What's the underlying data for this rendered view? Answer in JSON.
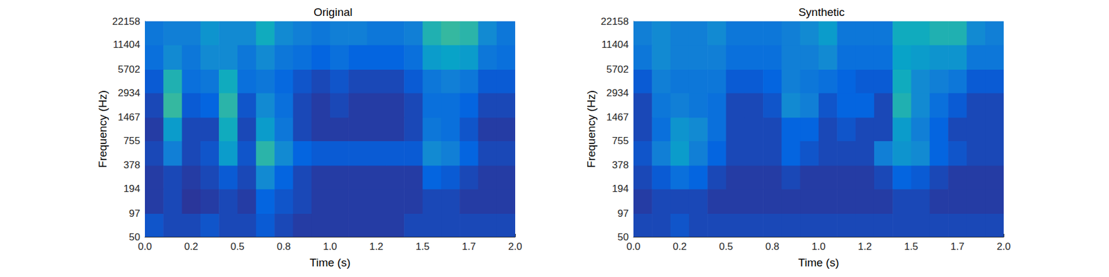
{
  "chart_data": [
    {
      "type": "heatmap",
      "title": "Original",
      "x_label": "Time (s)",
      "y_label": "Frequency (Hz)",
      "log": "y",
      "grid": false,
      "xlim": [
        0,
        2
      ],
      "ylim": [
        50,
        22158
      ],
      "zlim": [
        0.25,
        1.0
      ],
      "xticks": [
        {
          "value": 0,
          "label": "0.0"
        },
        {
          "value": 0.25,
          "label": "0.2"
        },
        {
          "value": 0.5,
          "label": "0.5"
        },
        {
          "value": 0.75,
          "label": "0.8"
        },
        {
          "value": 1,
          "label": "1.0"
        },
        {
          "value": 1.25,
          "label": "1.2"
        },
        {
          "value": 1.5,
          "label": "1.5"
        },
        {
          "value": 1.75,
          "label": "1.7"
        },
        {
          "value": 2,
          "label": "2.0"
        }
      ],
      "yticks": [
        50,
        97,
        194,
        378,
        755,
        1467,
        2934,
        5702,
        11404,
        22158
      ],
      "x_edges": [
        0,
        0.1,
        0.2,
        0.3,
        0.4,
        0.5,
        0.6,
        0.7,
        0.8,
        0.9,
        1.0,
        1.1,
        1.2,
        1.3,
        1.4,
        1.5,
        1.6,
        1.7,
        1.8,
        1.9,
        2.0
      ],
      "y_edges": [
        50,
        97,
        194,
        378,
        755,
        1467,
        2934,
        5702,
        11404,
        22158
      ],
      "values": [
        [
          0.32,
          0.3,
          0.3,
          0.32,
          0.3,
          0.3,
          0.33,
          0.3,
          0.28,
          0.28,
          0.28,
          0.28,
          0.28,
          0.28,
          0.3,
          0.3,
          0.3,
          0.3,
          0.3,
          0.3
        ],
        [
          0.28,
          0.3,
          0.27,
          0.28,
          0.3,
          0.28,
          0.35,
          0.32,
          0.3,
          0.28,
          0.28,
          0.28,
          0.28,
          0.28,
          0.28,
          0.3,
          0.3,
          0.28,
          0.28,
          0.28
        ],
        [
          0.28,
          0.3,
          0.28,
          0.3,
          0.33,
          0.3,
          0.45,
          0.35,
          0.3,
          0.28,
          0.28,
          0.28,
          0.28,
          0.28,
          0.28,
          0.35,
          0.33,
          0.3,
          0.28,
          0.28
        ],
        [
          0.3,
          0.42,
          0.3,
          0.32,
          0.5,
          0.32,
          0.6,
          0.45,
          0.35,
          0.33,
          0.33,
          0.33,
          0.33,
          0.33,
          0.33,
          0.45,
          0.42,
          0.35,
          0.3,
          0.3
        ],
        [
          0.28,
          0.5,
          0.3,
          0.3,
          0.55,
          0.3,
          0.5,
          0.4,
          0.3,
          0.28,
          0.28,
          0.28,
          0.28,
          0.28,
          0.3,
          0.4,
          0.38,
          0.32,
          0.28,
          0.28
        ],
        [
          0.3,
          0.62,
          0.33,
          0.35,
          0.6,
          0.32,
          0.45,
          0.38,
          0.3,
          0.28,
          0.3,
          0.28,
          0.28,
          0.28,
          0.3,
          0.38,
          0.38,
          0.35,
          0.3,
          0.3
        ],
        [
          0.33,
          0.58,
          0.38,
          0.4,
          0.55,
          0.38,
          0.4,
          0.36,
          0.32,
          0.3,
          0.32,
          0.3,
          0.3,
          0.3,
          0.33,
          0.4,
          0.42,
          0.4,
          0.33,
          0.33
        ],
        [
          0.38,
          0.45,
          0.4,
          0.45,
          0.45,
          0.4,
          0.45,
          0.4,
          0.38,
          0.35,
          0.38,
          0.35,
          0.35,
          0.35,
          0.38,
          0.5,
          0.52,
          0.5,
          0.4,
          0.38
        ],
        [
          0.4,
          0.42,
          0.42,
          0.48,
          0.45,
          0.45,
          0.55,
          0.45,
          0.42,
          0.4,
          0.42,
          0.42,
          0.4,
          0.4,
          0.42,
          0.58,
          0.62,
          0.6,
          0.45,
          0.4
        ]
      ]
    },
    {
      "type": "heatmap",
      "title": "Synthetic",
      "x_label": "Time (s)",
      "y_label": "Frequency (Hz)",
      "log": "y",
      "grid": false,
      "xlim": [
        0,
        2
      ],
      "ylim": [
        50,
        22158
      ],
      "zlim": [
        0.25,
        1.0
      ],
      "xticks": [
        {
          "value": 0,
          "label": "0.0"
        },
        {
          "value": 0.25,
          "label": "0.2"
        },
        {
          "value": 0.5,
          "label": "0.5"
        },
        {
          "value": 0.75,
          "label": "0.8"
        },
        {
          "value": 1,
          "label": "1.0"
        },
        {
          "value": 1.25,
          "label": "1.2"
        },
        {
          "value": 1.5,
          "label": "1.5"
        },
        {
          "value": 1.75,
          "label": "1.7"
        },
        {
          "value": 2,
          "label": "2.0"
        }
      ],
      "yticks": [
        50,
        97,
        194,
        378,
        755,
        1467,
        2934,
        5702,
        11404,
        22158
      ],
      "x_edges": [
        0,
        0.1,
        0.2,
        0.3,
        0.4,
        0.5,
        0.6,
        0.7,
        0.8,
        0.9,
        1.0,
        1.1,
        1.2,
        1.3,
        1.4,
        1.5,
        1.6,
        1.7,
        1.8,
        1.9,
        2.0
      ],
      "y_edges": [
        50,
        97,
        194,
        378,
        755,
        1467,
        2934,
        5702,
        11404,
        22158
      ],
      "values": [
        [
          0.3,
          0.3,
          0.32,
          0.3,
          0.3,
          0.3,
          0.3,
          0.3,
          0.3,
          0.3,
          0.3,
          0.3,
          0.3,
          0.3,
          0.3,
          0.3,
          0.3,
          0.3,
          0.3,
          0.3
        ],
        [
          0.28,
          0.3,
          0.3,
          0.3,
          0.28,
          0.28,
          0.28,
          0.28,
          0.28,
          0.28,
          0.28,
          0.28,
          0.28,
          0.28,
          0.3,
          0.3,
          0.28,
          0.28,
          0.28,
          0.28
        ],
        [
          0.3,
          0.33,
          0.38,
          0.35,
          0.3,
          0.28,
          0.28,
          0.28,
          0.3,
          0.28,
          0.28,
          0.28,
          0.28,
          0.3,
          0.35,
          0.33,
          0.3,
          0.28,
          0.28,
          0.28
        ],
        [
          0.32,
          0.42,
          0.5,
          0.42,
          0.35,
          0.3,
          0.3,
          0.3,
          0.35,
          0.32,
          0.3,
          0.3,
          0.3,
          0.42,
          0.48,
          0.45,
          0.35,
          0.32,
          0.3,
          0.3
        ],
        [
          0.3,
          0.38,
          0.48,
          0.45,
          0.38,
          0.3,
          0.3,
          0.3,
          0.35,
          0.35,
          0.3,
          0.32,
          0.3,
          0.3,
          0.5,
          0.42,
          0.35,
          0.3,
          0.3,
          0.3
        ],
        [
          0.3,
          0.4,
          0.42,
          0.4,
          0.38,
          0.3,
          0.3,
          0.32,
          0.45,
          0.42,
          0.32,
          0.35,
          0.35,
          0.3,
          0.58,
          0.45,
          0.38,
          0.33,
          0.3,
          0.3
        ],
        [
          0.33,
          0.42,
          0.4,
          0.4,
          0.4,
          0.33,
          0.33,
          0.35,
          0.42,
          0.4,
          0.38,
          0.35,
          0.33,
          0.33,
          0.55,
          0.45,
          0.42,
          0.4,
          0.33,
          0.33
        ],
        [
          0.4,
          0.45,
          0.42,
          0.42,
          0.42,
          0.38,
          0.38,
          0.38,
          0.42,
          0.42,
          0.45,
          0.38,
          0.38,
          0.38,
          0.52,
          0.5,
          0.48,
          0.48,
          0.4,
          0.4
        ],
        [
          0.42,
          0.45,
          0.42,
          0.42,
          0.45,
          0.4,
          0.4,
          0.4,
          0.42,
          0.45,
          0.5,
          0.4,
          0.4,
          0.4,
          0.55,
          0.55,
          0.58,
          0.58,
          0.45,
          0.42
        ]
      ]
    }
  ]
}
